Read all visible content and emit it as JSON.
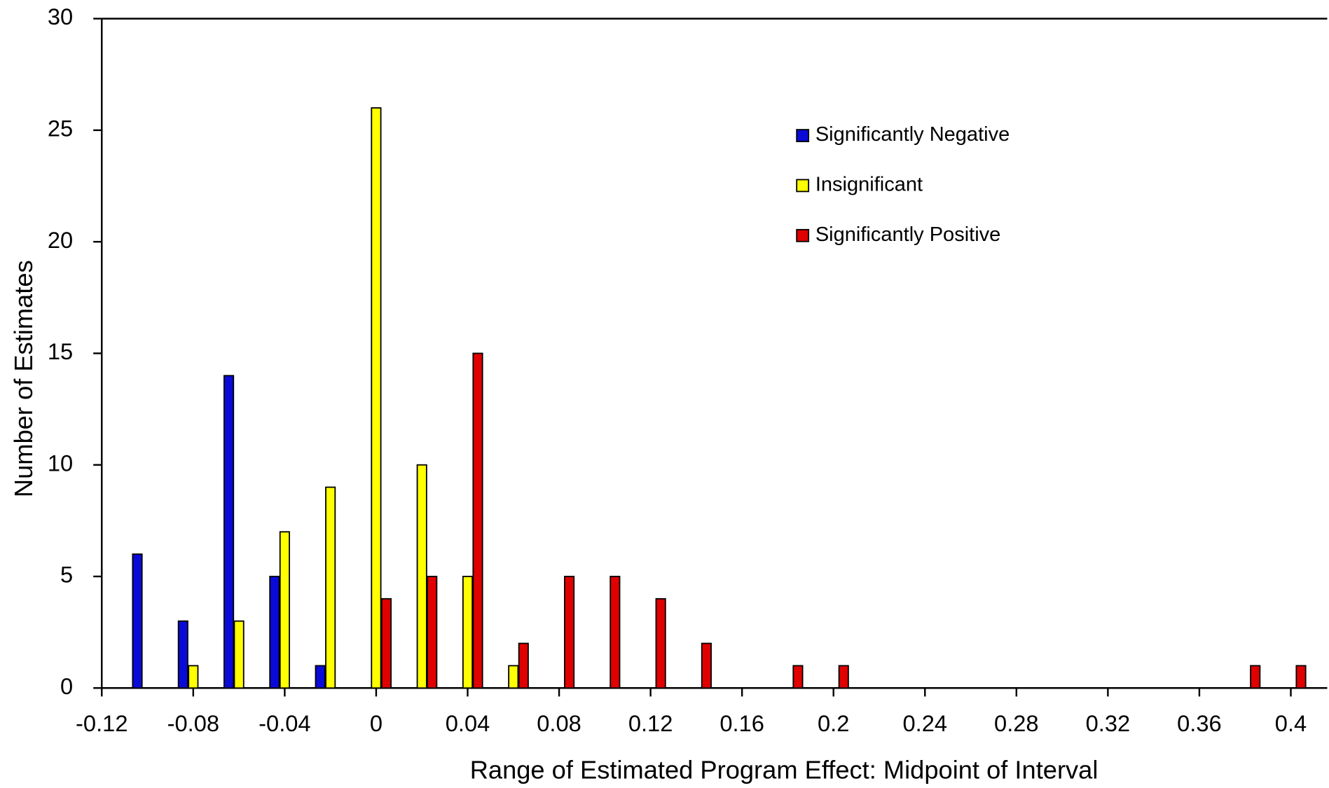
{
  "chart_data": {
    "type": "bar",
    "x_label": "Range of Estimated Program Effect: Midpoint of Interval",
    "y_label": "Number of Estimates",
    "x": [
      -0.1,
      -0.08,
      -0.06,
      -0.04,
      -0.02,
      0,
      0.02,
      0.04,
      0.06,
      0.08,
      0.1,
      0.12,
      0.14,
      0.16,
      0.18,
      0.2,
      0.22,
      0.24,
      0.26,
      0.28,
      0.3,
      0.32,
      0.34,
      0.36,
      0.38,
      0.4
    ],
    "series": [
      {
        "name": "Significantly Negative",
        "color": "#0a0ad8",
        "values": [
          6,
          3,
          14,
          5,
          1,
          0,
          0,
          0,
          0,
          0,
          0,
          0,
          0,
          0,
          0,
          0,
          0,
          0,
          0,
          0,
          0,
          0,
          0,
          0,
          0,
          0
        ]
      },
      {
        "name": "Insignificant",
        "color": "#ffff00",
        "values": [
          0,
          1,
          3,
          7,
          9,
          26,
          10,
          5,
          1,
          0,
          0,
          0,
          0,
          0,
          0,
          0,
          0,
          0,
          0,
          0,
          0,
          0,
          0,
          0,
          0,
          0
        ]
      },
      {
        "name": "Significantly Positive",
        "color": "#e00000",
        "values": [
          0,
          0,
          0,
          0,
          0,
          4,
          5,
          15,
          2,
          5,
          5,
          4,
          2,
          0,
          1,
          1,
          0,
          0,
          0,
          0,
          0,
          0,
          0,
          0,
          1,
          1
        ]
      }
    ],
    "xlim": [
      -0.12,
      0.42
    ],
    "xticks": [
      -0.12,
      -0.08,
      -0.04,
      0,
      0.04,
      0.08,
      0.12,
      0.16,
      0.2,
      0.24,
      0.28,
      0.32,
      0.36,
      0.4
    ],
    "ylim": [
      0,
      30
    ],
    "yticks": [
      0,
      5,
      10,
      15,
      20,
      25,
      30
    ],
    "grid": false
  }
}
